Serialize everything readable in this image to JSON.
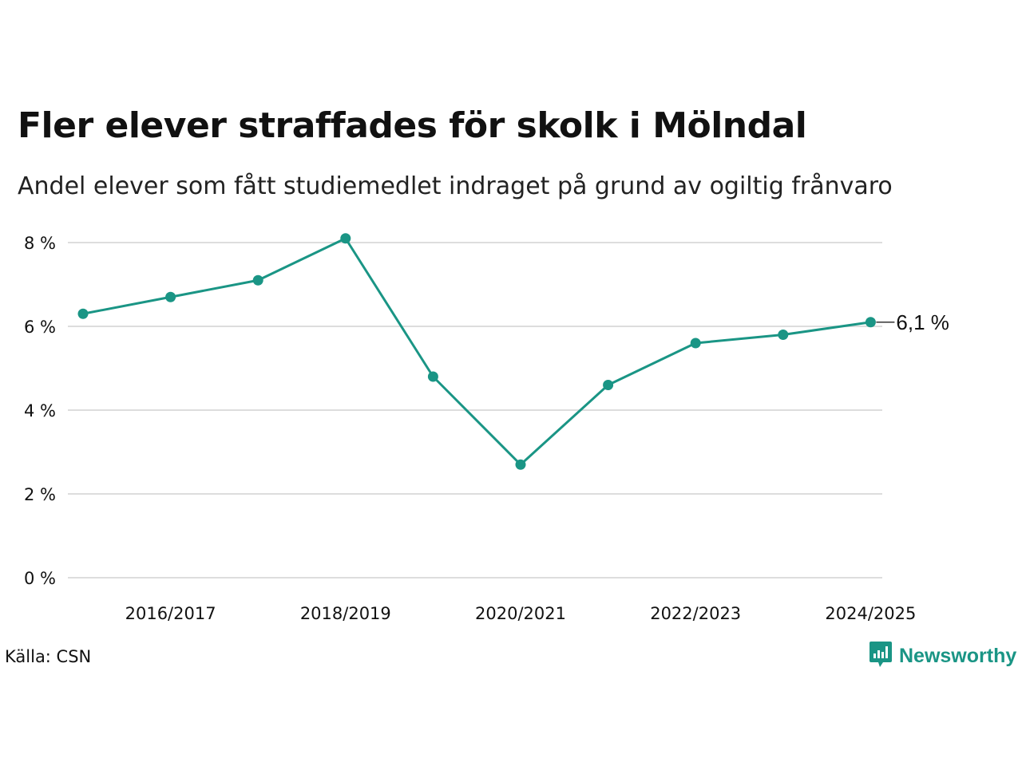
{
  "title": "Fler elever straffades för skolk i Mölndal",
  "subtitle": "Andel elever som fått studiemedlet indraget på grund av ogiltig frånvaro",
  "source": "Källa: CSN",
  "brand": {
    "name": "Newsworthy",
    "icon": "newsworthy-logo-icon"
  },
  "colors": {
    "series": "#1a9585",
    "grid": "#dddddd",
    "text": "#111111"
  },
  "chart_data": {
    "type": "line",
    "x": [
      "2015/2016",
      "2016/2017",
      "2017/2018",
      "2018/2019",
      "2019/2020",
      "2020/2021",
      "2021/2022",
      "2022/2023",
      "2023/2024",
      "2024/2025"
    ],
    "xticks": [
      "2016/2017",
      "2018/2019",
      "2020/2021",
      "2022/2023",
      "2024/2025"
    ],
    "series": [
      {
        "values": [
          6.3,
          6.7,
          7.1,
          8.1,
          4.8,
          2.7,
          4.6,
          5.6,
          5.8,
          6.1
        ]
      }
    ],
    "yticks": [
      0,
      2,
      4,
      6,
      8
    ],
    "ytick_labels": [
      "0 %",
      "2 %",
      "4 %",
      "6 %",
      "8 %"
    ],
    "ylim": [
      0,
      8
    ],
    "end_label": "6,1 %",
    "grid": true,
    "markers": true
  }
}
